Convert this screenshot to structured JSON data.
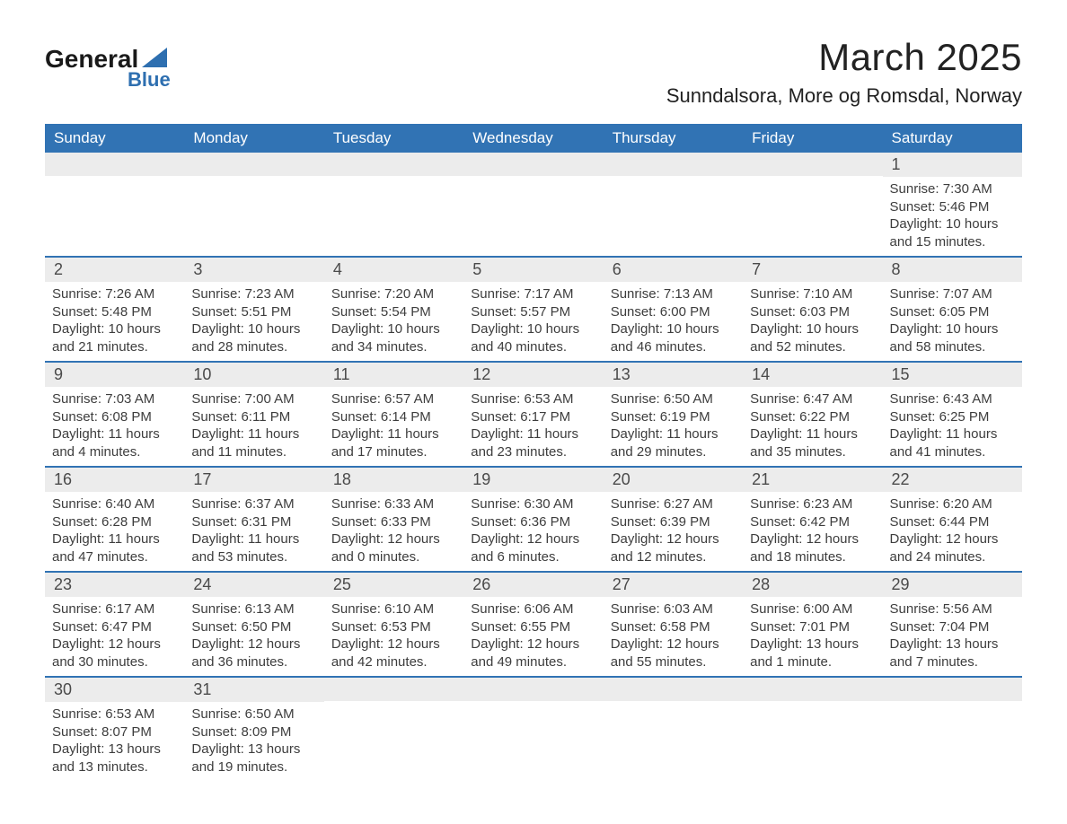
{
  "brand": {
    "name1": "General",
    "name2": "Blue",
    "triangle_color": "#2e6fb0"
  },
  "title": "March 2025",
  "location": "Sunndalsora, More og Romsdal, Norway",
  "colors": {
    "header_bg": "#3173b4",
    "header_text": "#ffffff",
    "daynum_bg": "#ececec",
    "row_border": "#3173b4",
    "body_text": "#3d3d3d"
  },
  "day_headers": [
    "Sunday",
    "Monday",
    "Tuesday",
    "Wednesday",
    "Thursday",
    "Friday",
    "Saturday"
  ],
  "weeks": [
    [
      {
        "day": "",
        "sunrise": "",
        "sunset": "",
        "daylight1": "",
        "daylight2": ""
      },
      {
        "day": "",
        "sunrise": "",
        "sunset": "",
        "daylight1": "",
        "daylight2": ""
      },
      {
        "day": "",
        "sunrise": "",
        "sunset": "",
        "daylight1": "",
        "daylight2": ""
      },
      {
        "day": "",
        "sunrise": "",
        "sunset": "",
        "daylight1": "",
        "daylight2": ""
      },
      {
        "day": "",
        "sunrise": "",
        "sunset": "",
        "daylight1": "",
        "daylight2": ""
      },
      {
        "day": "",
        "sunrise": "",
        "sunset": "",
        "daylight1": "",
        "daylight2": ""
      },
      {
        "day": "1",
        "sunrise": "Sunrise: 7:30 AM",
        "sunset": "Sunset: 5:46 PM",
        "daylight1": "Daylight: 10 hours",
        "daylight2": "and 15 minutes."
      }
    ],
    [
      {
        "day": "2",
        "sunrise": "Sunrise: 7:26 AM",
        "sunset": "Sunset: 5:48 PM",
        "daylight1": "Daylight: 10 hours",
        "daylight2": "and 21 minutes."
      },
      {
        "day": "3",
        "sunrise": "Sunrise: 7:23 AM",
        "sunset": "Sunset: 5:51 PM",
        "daylight1": "Daylight: 10 hours",
        "daylight2": "and 28 minutes."
      },
      {
        "day": "4",
        "sunrise": "Sunrise: 7:20 AM",
        "sunset": "Sunset: 5:54 PM",
        "daylight1": "Daylight: 10 hours",
        "daylight2": "and 34 minutes."
      },
      {
        "day": "5",
        "sunrise": "Sunrise: 7:17 AM",
        "sunset": "Sunset: 5:57 PM",
        "daylight1": "Daylight: 10 hours",
        "daylight2": "and 40 minutes."
      },
      {
        "day": "6",
        "sunrise": "Sunrise: 7:13 AM",
        "sunset": "Sunset: 6:00 PM",
        "daylight1": "Daylight: 10 hours",
        "daylight2": "and 46 minutes."
      },
      {
        "day": "7",
        "sunrise": "Sunrise: 7:10 AM",
        "sunset": "Sunset: 6:03 PM",
        "daylight1": "Daylight: 10 hours",
        "daylight2": "and 52 minutes."
      },
      {
        "day": "8",
        "sunrise": "Sunrise: 7:07 AM",
        "sunset": "Sunset: 6:05 PM",
        "daylight1": "Daylight: 10 hours",
        "daylight2": "and 58 minutes."
      }
    ],
    [
      {
        "day": "9",
        "sunrise": "Sunrise: 7:03 AM",
        "sunset": "Sunset: 6:08 PM",
        "daylight1": "Daylight: 11 hours",
        "daylight2": "and 4 minutes."
      },
      {
        "day": "10",
        "sunrise": "Sunrise: 7:00 AM",
        "sunset": "Sunset: 6:11 PM",
        "daylight1": "Daylight: 11 hours",
        "daylight2": "and 11 minutes."
      },
      {
        "day": "11",
        "sunrise": "Sunrise: 6:57 AM",
        "sunset": "Sunset: 6:14 PM",
        "daylight1": "Daylight: 11 hours",
        "daylight2": "and 17 minutes."
      },
      {
        "day": "12",
        "sunrise": "Sunrise: 6:53 AM",
        "sunset": "Sunset: 6:17 PM",
        "daylight1": "Daylight: 11 hours",
        "daylight2": "and 23 minutes."
      },
      {
        "day": "13",
        "sunrise": "Sunrise: 6:50 AM",
        "sunset": "Sunset: 6:19 PM",
        "daylight1": "Daylight: 11 hours",
        "daylight2": "and 29 minutes."
      },
      {
        "day": "14",
        "sunrise": "Sunrise: 6:47 AM",
        "sunset": "Sunset: 6:22 PM",
        "daylight1": "Daylight: 11 hours",
        "daylight2": "and 35 minutes."
      },
      {
        "day": "15",
        "sunrise": "Sunrise: 6:43 AM",
        "sunset": "Sunset: 6:25 PM",
        "daylight1": "Daylight: 11 hours",
        "daylight2": "and 41 minutes."
      }
    ],
    [
      {
        "day": "16",
        "sunrise": "Sunrise: 6:40 AM",
        "sunset": "Sunset: 6:28 PM",
        "daylight1": "Daylight: 11 hours",
        "daylight2": "and 47 minutes."
      },
      {
        "day": "17",
        "sunrise": "Sunrise: 6:37 AM",
        "sunset": "Sunset: 6:31 PM",
        "daylight1": "Daylight: 11 hours",
        "daylight2": "and 53 minutes."
      },
      {
        "day": "18",
        "sunrise": "Sunrise: 6:33 AM",
        "sunset": "Sunset: 6:33 PM",
        "daylight1": "Daylight: 12 hours",
        "daylight2": "and 0 minutes."
      },
      {
        "day": "19",
        "sunrise": "Sunrise: 6:30 AM",
        "sunset": "Sunset: 6:36 PM",
        "daylight1": "Daylight: 12 hours",
        "daylight2": "and 6 minutes."
      },
      {
        "day": "20",
        "sunrise": "Sunrise: 6:27 AM",
        "sunset": "Sunset: 6:39 PM",
        "daylight1": "Daylight: 12 hours",
        "daylight2": "and 12 minutes."
      },
      {
        "day": "21",
        "sunrise": "Sunrise: 6:23 AM",
        "sunset": "Sunset: 6:42 PM",
        "daylight1": "Daylight: 12 hours",
        "daylight2": "and 18 minutes."
      },
      {
        "day": "22",
        "sunrise": "Sunrise: 6:20 AM",
        "sunset": "Sunset: 6:44 PM",
        "daylight1": "Daylight: 12 hours",
        "daylight2": "and 24 minutes."
      }
    ],
    [
      {
        "day": "23",
        "sunrise": "Sunrise: 6:17 AM",
        "sunset": "Sunset: 6:47 PM",
        "daylight1": "Daylight: 12 hours",
        "daylight2": "and 30 minutes."
      },
      {
        "day": "24",
        "sunrise": "Sunrise: 6:13 AM",
        "sunset": "Sunset: 6:50 PM",
        "daylight1": "Daylight: 12 hours",
        "daylight2": "and 36 minutes."
      },
      {
        "day": "25",
        "sunrise": "Sunrise: 6:10 AM",
        "sunset": "Sunset: 6:53 PM",
        "daylight1": "Daylight: 12 hours",
        "daylight2": "and 42 minutes."
      },
      {
        "day": "26",
        "sunrise": "Sunrise: 6:06 AM",
        "sunset": "Sunset: 6:55 PM",
        "daylight1": "Daylight: 12 hours",
        "daylight2": "and 49 minutes."
      },
      {
        "day": "27",
        "sunrise": "Sunrise: 6:03 AM",
        "sunset": "Sunset: 6:58 PM",
        "daylight1": "Daylight: 12 hours",
        "daylight2": "and 55 minutes."
      },
      {
        "day": "28",
        "sunrise": "Sunrise: 6:00 AM",
        "sunset": "Sunset: 7:01 PM",
        "daylight1": "Daylight: 13 hours",
        "daylight2": "and 1 minute."
      },
      {
        "day": "29",
        "sunrise": "Sunrise: 5:56 AM",
        "sunset": "Sunset: 7:04 PM",
        "daylight1": "Daylight: 13 hours",
        "daylight2": "and 7 minutes."
      }
    ],
    [
      {
        "day": "30",
        "sunrise": "Sunrise: 6:53 AM",
        "sunset": "Sunset: 8:07 PM",
        "daylight1": "Daylight: 13 hours",
        "daylight2": "and 13 minutes."
      },
      {
        "day": "31",
        "sunrise": "Sunrise: 6:50 AM",
        "sunset": "Sunset: 8:09 PM",
        "daylight1": "Daylight: 13 hours",
        "daylight2": "and 19 minutes."
      },
      {
        "day": "",
        "sunrise": "",
        "sunset": "",
        "daylight1": "",
        "daylight2": ""
      },
      {
        "day": "",
        "sunrise": "",
        "sunset": "",
        "daylight1": "",
        "daylight2": ""
      },
      {
        "day": "",
        "sunrise": "",
        "sunset": "",
        "daylight1": "",
        "daylight2": ""
      },
      {
        "day": "",
        "sunrise": "",
        "sunset": "",
        "daylight1": "",
        "daylight2": ""
      },
      {
        "day": "",
        "sunrise": "",
        "sunset": "",
        "daylight1": "",
        "daylight2": ""
      }
    ]
  ]
}
